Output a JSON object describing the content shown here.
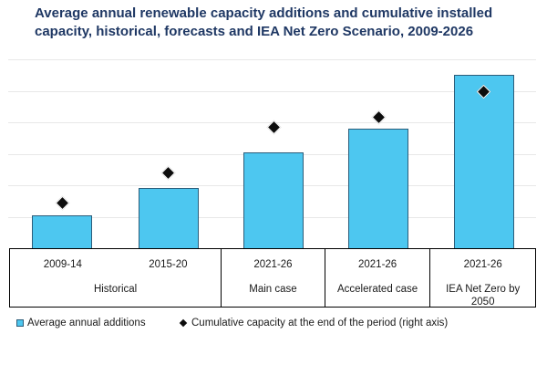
{
  "header": {
    "title_line1": "Average annual renewable capacity additions and cumulative installed",
    "title_line2": "capacity, historical, forecasts and IEA Net Zero Scenario, 2009-2026"
  },
  "colors": {
    "title_text": "#1f3864",
    "bar_fill": "#4dc7f0",
    "bar_border": "#2c5d7a",
    "diamond": "#0d0d0d",
    "gridline": "#e8e8e8",
    "table_border": "#000000",
    "label_text": "#1a1a1a",
    "background": "#ffffff"
  },
  "chart_data": {
    "type": "bar",
    "title": "Average annual renewable capacity additions and cumulative installed capacity, historical, forecasts and IEA Net Zero Scenario, 2009-2026",
    "categories": [
      "2009-14",
      "2015-20",
      "2021-26",
      "2021-26",
      "2021-26"
    ],
    "category_groups": [
      {
        "label": "Historical",
        "count": 2
      },
      {
        "label": "Main case",
        "count": 1
      },
      {
        "label": "Accelerated case",
        "count": 1
      },
      {
        "label": "IEA Net Zero by 2050",
        "count": 1
      }
    ],
    "series": [
      {
        "name": "Average annual additions",
        "type": "bar",
        "axis": "left",
        "values": [
          105,
          190,
          305,
          380,
          550
        ]
      },
      {
        "name": "Cumulative capacity at the end of the period (right axis)",
        "type": "scatter",
        "marker": "diamond",
        "axis": "right",
        "values": [
          1800,
          3000,
          4800,
          5200,
          6200
        ]
      }
    ],
    "left_ylim": [
      0,
      600
    ],
    "right_ylim": [
      0,
      7500
    ],
    "grid": true,
    "gridline_count": 6,
    "legend_position": "bottom",
    "axis_tick_labels_visible": false
  }
}
